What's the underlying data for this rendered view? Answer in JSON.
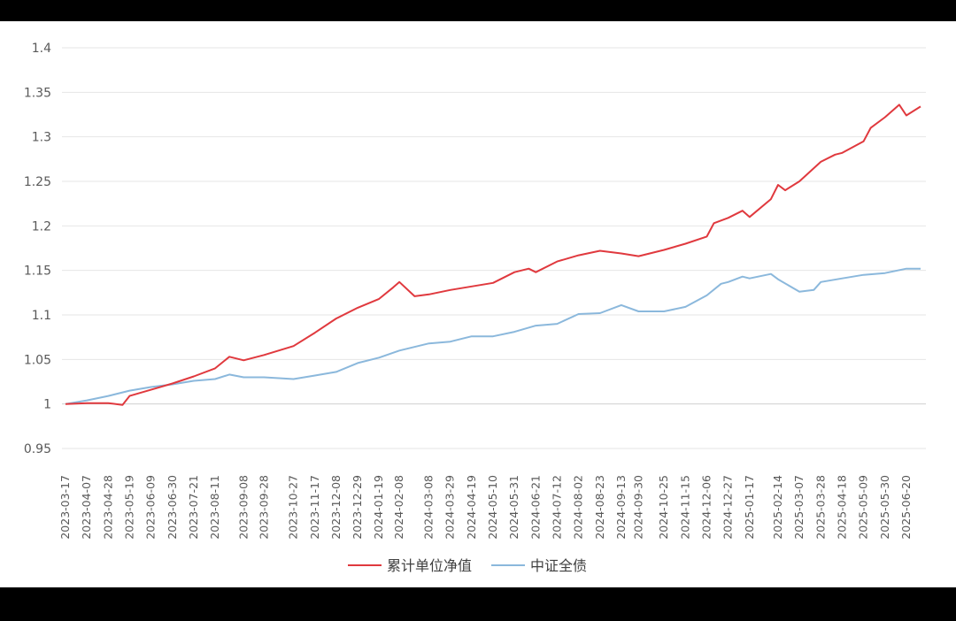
{
  "chart_data": {
    "type": "line",
    "xlabel": "",
    "ylabel": "",
    "ylim": [
      0.95,
      1.4
    ],
    "yticks": [
      "0.95",
      "1",
      "1.05",
      "1.1",
      "1.15",
      "1.2",
      "1.25",
      "1.3",
      "1.35",
      "1.4"
    ],
    "grid": true,
    "legend_position": "bottom",
    "x_ticks": [
      "2023-03-17",
      "2023-04-07",
      "2023-04-28",
      "2023-05-19",
      "2023-06-09",
      "2023-06-30",
      "2023-07-21",
      "2023-08-11",
      "2023-09-08",
      "2023-09-28",
      "2023-10-27",
      "2023-11-17",
      "2023-12-08",
      "2023-12-29",
      "2024-01-19",
      "2024-02-08",
      "2024-03-08",
      "2024-03-29",
      "2024-04-19",
      "2024-05-10",
      "2024-05-31",
      "2024-06-21",
      "2024-07-12",
      "2024-08-02",
      "2024-08-23",
      "2024-09-13",
      "2024-09-30",
      "2024-10-25",
      "2024-11-15",
      "2024-12-06",
      "2024-12-27",
      "2025-01-17",
      "2025-02-14",
      "2025-03-07",
      "2025-03-28",
      "2025-04-18",
      "2025-05-09",
      "2025-05-30",
      "2025-06-20"
    ],
    "x_last": "2025-07-04",
    "series": [
      {
        "name": "累计单位净值",
        "color": "#e0393e",
        "points": [
          [
            "2023-03-17",
            1.0
          ],
          [
            "2023-04-07",
            1.001
          ],
          [
            "2023-04-28",
            1.001
          ],
          [
            "2023-05-12",
            0.999
          ],
          [
            "2023-05-19",
            1.009
          ],
          [
            "2023-06-09",
            1.016
          ],
          [
            "2023-06-30",
            1.023
          ],
          [
            "2023-07-21",
            1.031
          ],
          [
            "2023-08-11",
            1.04
          ],
          [
            "2023-08-25",
            1.053
          ],
          [
            "2023-09-08",
            1.049
          ],
          [
            "2023-09-28",
            1.055
          ],
          [
            "2023-10-27",
            1.065
          ],
          [
            "2023-11-17",
            1.08
          ],
          [
            "2023-12-08",
            1.096
          ],
          [
            "2023-12-29",
            1.108
          ],
          [
            "2024-01-19",
            1.118
          ],
          [
            "2024-02-02",
            1.131
          ],
          [
            "2024-02-08",
            1.137
          ],
          [
            "2024-02-23",
            1.121
          ],
          [
            "2024-03-08",
            1.123
          ],
          [
            "2024-03-29",
            1.128
          ],
          [
            "2024-04-19",
            1.132
          ],
          [
            "2024-05-10",
            1.136
          ],
          [
            "2024-05-31",
            1.148
          ],
          [
            "2024-06-14",
            1.152
          ],
          [
            "2024-06-21",
            1.148
          ],
          [
            "2024-07-12",
            1.16
          ],
          [
            "2024-08-02",
            1.167
          ],
          [
            "2024-08-23",
            1.172
          ],
          [
            "2024-09-13",
            1.169
          ],
          [
            "2024-09-30",
            1.166
          ],
          [
            "2024-10-25",
            1.173
          ],
          [
            "2024-11-15",
            1.18
          ],
          [
            "2024-12-06",
            1.188
          ],
          [
            "2024-12-13",
            1.203
          ],
          [
            "2024-12-27",
            1.209
          ],
          [
            "2025-01-10",
            1.217
          ],
          [
            "2025-01-17",
            1.21
          ],
          [
            "2025-02-07",
            1.23
          ],
          [
            "2025-02-14",
            1.246
          ],
          [
            "2025-02-21",
            1.24
          ],
          [
            "2025-03-07",
            1.25
          ],
          [
            "2025-03-28",
            1.272
          ],
          [
            "2025-04-11",
            1.28
          ],
          [
            "2025-04-18",
            1.282
          ],
          [
            "2025-05-09",
            1.295
          ],
          [
            "2025-05-16",
            1.31
          ],
          [
            "2025-05-30",
            1.322
          ],
          [
            "2025-06-13",
            1.336
          ],
          [
            "2025-06-20",
            1.324
          ],
          [
            "2025-07-04",
            1.334
          ]
        ]
      },
      {
        "name": "中证全债",
        "color": "#8bb8dc",
        "points": [
          [
            "2023-03-17",
            1.0
          ],
          [
            "2023-04-07",
            1.004
          ],
          [
            "2023-04-28",
            1.009
          ],
          [
            "2023-05-19",
            1.015
          ],
          [
            "2023-06-09",
            1.019
          ],
          [
            "2023-06-30",
            1.022
          ],
          [
            "2023-07-21",
            1.026
          ],
          [
            "2023-08-11",
            1.028
          ],
          [
            "2023-08-25",
            1.033
          ],
          [
            "2023-09-08",
            1.03
          ],
          [
            "2023-09-28",
            1.03
          ],
          [
            "2023-10-27",
            1.028
          ],
          [
            "2023-11-17",
            1.032
          ],
          [
            "2023-12-08",
            1.036
          ],
          [
            "2023-12-29",
            1.046
          ],
          [
            "2024-01-19",
            1.052
          ],
          [
            "2024-02-08",
            1.06
          ],
          [
            "2024-03-08",
            1.068
          ],
          [
            "2024-03-29",
            1.07
          ],
          [
            "2024-04-19",
            1.076
          ],
          [
            "2024-05-10",
            1.076
          ],
          [
            "2024-05-31",
            1.081
          ],
          [
            "2024-06-21",
            1.088
          ],
          [
            "2024-07-12",
            1.09
          ],
          [
            "2024-08-02",
            1.101
          ],
          [
            "2024-08-23",
            1.102
          ],
          [
            "2024-09-13",
            1.111
          ],
          [
            "2024-09-30",
            1.104
          ],
          [
            "2024-10-25",
            1.104
          ],
          [
            "2024-11-15",
            1.109
          ],
          [
            "2024-12-06",
            1.122
          ],
          [
            "2024-12-20",
            1.135
          ],
          [
            "2024-12-27",
            1.137
          ],
          [
            "2025-01-10",
            1.143
          ],
          [
            "2025-01-17",
            1.141
          ],
          [
            "2025-02-07",
            1.146
          ],
          [
            "2025-02-14",
            1.14
          ],
          [
            "2025-03-07",
            1.126
          ],
          [
            "2025-03-21",
            1.128
          ],
          [
            "2025-03-28",
            1.137
          ],
          [
            "2025-04-18",
            1.141
          ],
          [
            "2025-05-09",
            1.145
          ],
          [
            "2025-05-30",
            1.147
          ],
          [
            "2025-06-20",
            1.152
          ],
          [
            "2025-07-04",
            1.152
          ]
        ]
      }
    ]
  }
}
